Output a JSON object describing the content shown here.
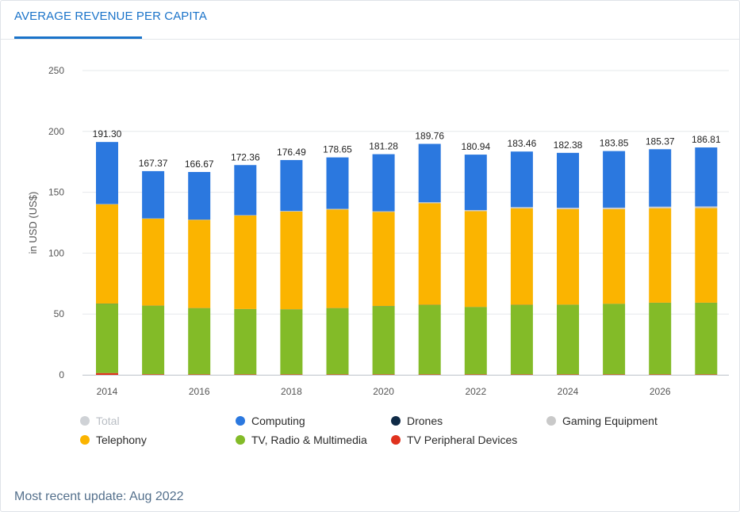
{
  "tab": {
    "label": "AVERAGE REVENUE PER CAPITA"
  },
  "footer": {
    "update_text": "Most recent update: Aug 2022"
  },
  "colors": {
    "computing": "#2b78df",
    "telephony": "#fbb400",
    "tv": "#83bb28",
    "peripheral": "#e0321e",
    "drones": "#0f2a46",
    "gaming": "#c9c9c9",
    "total_muted": "#cfd2d6"
  },
  "legend": [
    {
      "key": "total",
      "label": "Total",
      "color": "#cfd2d6",
      "muted": true
    },
    {
      "key": "computing",
      "label": "Computing",
      "color": "#2b78df",
      "muted": false
    },
    {
      "key": "drones",
      "label": "Drones",
      "color": "#0f2a46",
      "muted": false
    },
    {
      "key": "gaming",
      "label": "Gaming Equipment",
      "color": "#c9c9c9",
      "muted": false
    },
    {
      "key": "telephony",
      "label": "Telephony",
      "color": "#fbb400",
      "muted": false
    },
    {
      "key": "tv",
      "label": "TV, Radio & Multimedia",
      "color": "#83bb28",
      "muted": false
    },
    {
      "key": "peripheral",
      "label": "TV Peripheral Devices",
      "color": "#e0321e",
      "muted": false
    }
  ],
  "chart_data": {
    "type": "bar",
    "stacked": true,
    "ylabel": "in USD (US$)",
    "ylim": [
      0,
      250
    ],
    "yticks": [
      0,
      50,
      100,
      150,
      200,
      250
    ],
    "grid": true,
    "x": [
      2014,
      2015,
      2016,
      2017,
      2018,
      2019,
      2020,
      2021,
      2022,
      2023,
      2024,
      2025,
      2026,
      2027
    ],
    "xtick_labels": [
      "2014",
      "2016",
      "2018",
      "2020",
      "2022",
      "2024",
      "2026"
    ],
    "xtick_values": [
      2014,
      2016,
      2018,
      2020,
      2022,
      2024,
      2026
    ],
    "total_labels": [
      "191.30",
      "167.37",
      "166.67",
      "172.36",
      "176.49",
      "178.65",
      "181.28",
      "189.76",
      "180.94",
      "183.46",
      "182.38",
      "183.85",
      "185.37",
      "186.81"
    ],
    "series": [
      {
        "name": "TV Peripheral Devices",
        "key": "peripheral",
        "color": "#e0321e",
        "values": [
          1.5,
          0.5,
          0.4,
          0.4,
          0.4,
          0.4,
          0.4,
          0.4,
          0.4,
          0.4,
          0.4,
          0.4,
          0.4,
          0.4
        ]
      },
      {
        "name": "TV, Radio & Multimedia",
        "key": "tv",
        "color": "#83bb28",
        "values": [
          57.0,
          56.3,
          54.4,
          53.6,
          53.4,
          54.4,
          56.1,
          57.1,
          55.3,
          57.1,
          57.2,
          57.9,
          58.8,
          58.8
        ]
      },
      {
        "name": "Drones",
        "key": "drones",
        "color": "#0f2a46",
        "values": [
          0.1,
          0.1,
          0.1,
          0.1,
          0.1,
          0.1,
          0.1,
          0.1,
          0.1,
          0.1,
          0.1,
          0.1,
          0.1,
          0.1
        ]
      },
      {
        "name": "Telephony",
        "key": "telephony",
        "color": "#fbb400",
        "values": [
          81.5,
          71.4,
          72.4,
          76.8,
          80.3,
          81.0,
          77.2,
          83.4,
          78.7,
          79.2,
          78.5,
          77.8,
          77.6,
          77.7
        ]
      },
      {
        "name": "Gaming Equipment",
        "key": "gaming",
        "color": "#c9c9c9",
        "values": [
          0.2,
          0.2,
          0.2,
          0.3,
          0.4,
          0.5,
          0.6,
          0.8,
          0.9,
          1.0,
          1.1,
          1.2,
          1.3,
          1.4
        ]
      },
      {
        "name": "Computing",
        "key": "computing",
        "color": "#2b78df",
        "values": [
          51.0,
          38.87,
          39.17,
          41.16,
          41.89,
          42.25,
          46.88,
          47.96,
          45.54,
          45.66,
          45.08,
          46.45,
          47.17,
          48.41
        ]
      }
    ]
  }
}
